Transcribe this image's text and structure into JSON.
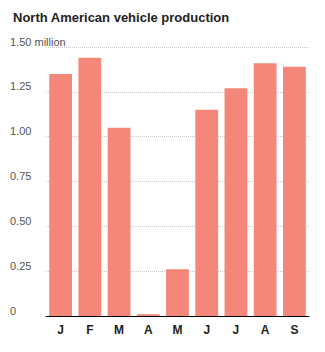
{
  "chart_data": {
    "type": "bar",
    "title": "North American vehicle production",
    "categories": [
      "J",
      "F",
      "M",
      "A",
      "M",
      "J",
      "J",
      "A",
      "S"
    ],
    "values": [
      1.35,
      1.44,
      1.05,
      0.01,
      0.26,
      1.15,
      1.27,
      1.41,
      1.39
    ],
    "color": "#f4877a",
    "ylim": [
      0,
      1.5
    ],
    "yticks": [
      0,
      0.25,
      {
        "value": 0.5,
        "label": "0.50"
      },
      0.75,
      {
        "value": 1,
        "label": "1.00"
      },
      1.25,
      {
        "value": 1.5,
        "label": "1.50 million"
      }
    ],
    "grid": true
  }
}
